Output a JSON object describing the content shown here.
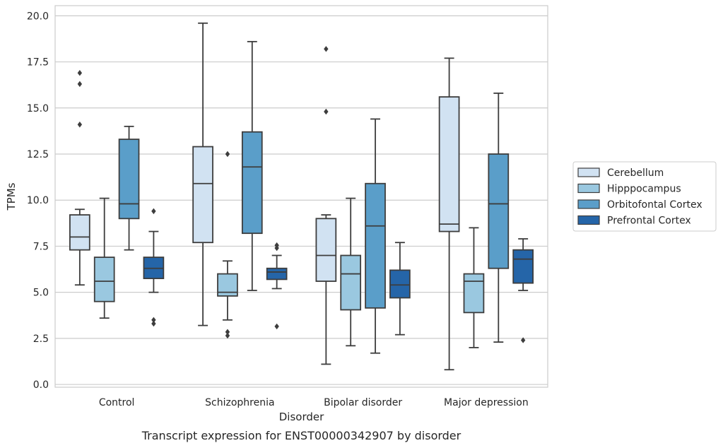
{
  "caption": "Transcript expression for ENST00000342907 by disorder",
  "chart_data": {
    "type": "box",
    "xlabel": "Disorder",
    "ylabel": "TPMs",
    "ylim": [
      -0.15,
      20.55
    ],
    "yticks": [
      0.0,
      2.5,
      5.0,
      7.5,
      10.0,
      12.5,
      15.0,
      17.5,
      20.0
    ],
    "ytick_labels": [
      "0.0",
      "2.5",
      "5.0",
      "7.5",
      "10.0",
      "12.5",
      "15.0",
      "17.5",
      "20.0"
    ],
    "grid": "horizontal",
    "legend_position": "right",
    "categories": [
      "Control",
      "Schizophrenia",
      "Bipolar disorder",
      "Major depression"
    ],
    "series": [
      {
        "name": "Cerebellum",
        "color": "#d1e2f2",
        "boxes": [
          {
            "whislo": 5.4,
            "q1": 7.3,
            "med": 8.0,
            "q3": 9.2,
            "whishi": 9.5,
            "fliers": [
              14.1,
              16.3,
              16.9
            ]
          },
          {
            "whislo": 3.2,
            "q1": 7.7,
            "med": 10.9,
            "q3": 12.9,
            "whishi": 19.6,
            "fliers": []
          },
          {
            "whislo": 1.1,
            "q1": 5.6,
            "med": 7.0,
            "q3": 9.0,
            "whishi": 9.2,
            "fliers": [
              14.8,
              18.2
            ]
          },
          {
            "whislo": 0.8,
            "q1": 8.3,
            "med": 8.7,
            "q3": 15.6,
            "whishi": 17.7,
            "fliers": []
          }
        ]
      },
      {
        "name": "Hipppocampus",
        "color": "#9ac8e0",
        "boxes": [
          {
            "whislo": 3.6,
            "q1": 4.5,
            "med": 5.6,
            "q3": 6.9,
            "whishi": 10.1,
            "fliers": []
          },
          {
            "whislo": 3.5,
            "q1": 4.8,
            "med": 5.0,
            "q3": 6.0,
            "whishi": 6.7,
            "fliers": [
              2.65,
              2.85,
              12.5
            ]
          },
          {
            "whislo": 2.1,
            "q1": 4.05,
            "med": 6.0,
            "q3": 7.0,
            "whishi": 10.1,
            "fliers": []
          },
          {
            "whislo": 2.0,
            "q1": 3.9,
            "med": 5.6,
            "q3": 6.0,
            "whishi": 8.5,
            "fliers": []
          }
        ]
      },
      {
        "name": "Orbitofontal Cortex",
        "color": "#5a9ec9",
        "boxes": [
          {
            "whislo": 7.3,
            "q1": 9.0,
            "med": 9.8,
            "q3": 13.3,
            "whishi": 14.0,
            "fliers": []
          },
          {
            "whislo": 5.1,
            "q1": 8.2,
            "med": 11.8,
            "q3": 13.7,
            "whishi": 18.6,
            "fliers": []
          },
          {
            "whislo": 1.7,
            "q1": 4.15,
            "med": 8.6,
            "q3": 10.9,
            "whishi": 14.4,
            "fliers": []
          },
          {
            "whislo": 2.3,
            "q1": 6.3,
            "med": 9.8,
            "q3": 12.5,
            "whishi": 15.8,
            "fliers": []
          }
        ]
      },
      {
        "name": "Prefrontal Cortex",
        "color": "#2565a8",
        "boxes": [
          {
            "whislo": 5.0,
            "q1": 5.75,
            "med": 6.3,
            "q3": 6.9,
            "whishi": 8.3,
            "fliers": [
              3.3,
              3.5,
              9.4
            ]
          },
          {
            "whislo": 5.2,
            "q1": 5.7,
            "med": 6.1,
            "q3": 6.3,
            "whishi": 7.0,
            "fliers": [
              3.15,
              7.4,
              7.55
            ]
          },
          {
            "whislo": 2.7,
            "q1": 4.7,
            "med": 5.4,
            "q3": 6.2,
            "whishi": 7.7,
            "fliers": []
          },
          {
            "whislo": 5.1,
            "q1": 5.5,
            "med": 6.8,
            "q3": 7.3,
            "whishi": 7.9,
            "fliers": [
              2.4
            ]
          }
        ]
      }
    ]
  }
}
